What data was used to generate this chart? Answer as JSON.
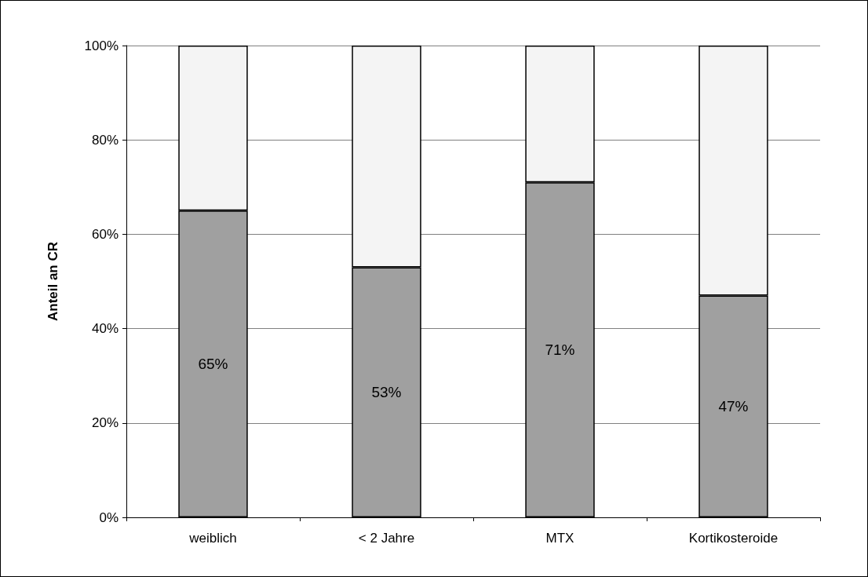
{
  "chart_data": {
    "type": "bar",
    "stacked": true,
    "ylabel": "Anteil an CR",
    "categories": [
      "weiblich",
      "< 2 Jahre",
      "MTX",
      "Kortikosteroide"
    ],
    "series": [
      {
        "color": "#a0a0a0",
        "values": [
          65,
          53,
          71,
          47
        ],
        "value_labels": [
          "65%",
          "53%",
          "71%",
          "47%"
        ]
      },
      {
        "color": "#f4f4f4",
        "values": [
          35,
          47,
          29,
          53
        ]
      }
    ],
    "ylim": [
      0,
      100
    ],
    "yticks": [
      {
        "value": 0,
        "label": "0%"
      },
      {
        "value": 20,
        "label": "20%"
      },
      {
        "value": 40,
        "label": "40%"
      },
      {
        "value": 60,
        "label": "60%"
      },
      {
        "value": 80,
        "label": "80%"
      },
      {
        "value": 100,
        "label": "100%"
      }
    ],
    "grid": "y"
  }
}
